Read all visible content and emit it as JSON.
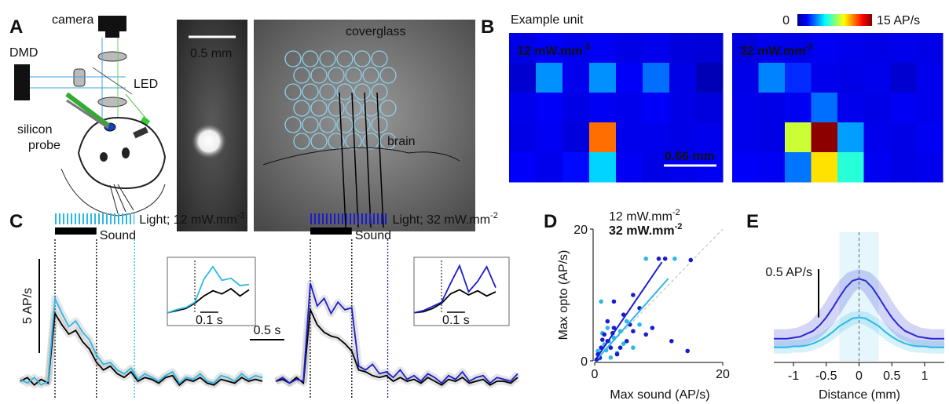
{
  "panel_a": {
    "label": "A",
    "camera": "camera",
    "dmd": "DMD",
    "led": "LED",
    "probe": [
      "silicon",
      "probe"
    ],
    "scale": "0.5 mm",
    "coverglass": "coverglass",
    "brain": "brain"
  },
  "panel_b": {
    "label": "B",
    "title": "Example unit",
    "clim": [
      0,
      15
    ],
    "cticks": [
      0,
      {
        "value": 15,
        "label": "15 AP/s"
      }
    ],
    "scale": "0.66 mm",
    "maps": [
      {
        "power": {
          "base": "12 mW.mm",
          "exp": "-2"
        },
        "values": [
          [
            1.5,
            1.8,
            1.6,
            1.7,
            1.5,
            1.6,
            1.4,
            1.3
          ],
          [
            1.2,
            4.0,
            1.6,
            4.0,
            1.8,
            3.5,
            1.5,
            0.8
          ],
          [
            1.6,
            1.8,
            1.5,
            1.7,
            1.6,
            1.8,
            1.5,
            1.4
          ],
          [
            1.5,
            1.7,
            1.4,
            11.5,
            1.6,
            1.6,
            1.5,
            1.6
          ],
          [
            1.8,
            1.6,
            2.0,
            5.0,
            1.7,
            1.5,
            1.6,
            1.7
          ]
        ]
      },
      {
        "power": {
          "base": "32 mW.mm",
          "exp": "-2"
        },
        "values": [
          [
            1.4,
            1.6,
            1.5,
            1.7,
            1.6,
            1.5,
            1.6,
            1.5
          ],
          [
            1.5,
            3.8,
            2.5,
            1.6,
            1.5,
            1.6,
            1.2,
            1.6
          ],
          [
            1.6,
            1.5,
            1.7,
            3.5,
            1.6,
            1.5,
            1.7,
            1.6
          ],
          [
            1.6,
            1.5,
            8.6,
            14.8,
            4.2,
            1.6,
            1.5,
            1.7
          ],
          [
            1.8,
            1.7,
            3.6,
            9.8,
            6.2,
            1.7,
            1.5,
            1.6
          ]
        ]
      }
    ]
  },
  "panel_c": {
    "label": "C",
    "sound": "Sound",
    "scale_y": "5 AP/s",
    "scale_x": "0.5 s",
    "inset_scale": "0.1 s",
    "ylim": [
      0,
      9
    ],
    "inset_ylim": [
      0,
      6
    ],
    "sound_period": [
      0,
      0.6
    ],
    "t": [
      -0.5,
      -0.4,
      -0.3,
      -0.2,
      -0.1,
      0,
      0.1,
      0.2,
      0.3,
      0.4,
      0.5,
      0.6,
      0.7,
      0.8,
      0.9,
      1.0,
      1.1,
      1.2,
      1.3,
      1.4,
      1.5,
      1.6,
      1.7,
      1.8,
      1.9,
      2.0,
      2.1,
      2.2,
      2.3,
      2.4,
      2.5,
      2.6,
      2.7,
      2.8,
      2.9,
      3.0
    ],
    "inset_t": [
      -0.15,
      -0.1,
      -0.05,
      0,
      0.05,
      0.1,
      0.15,
      0.2,
      0.25,
      0.3
    ],
    "conditions": [
      {
        "light": {
          "base": "Light; 12 mW.mm",
          "exp": "-2"
        },
        "color": "#2bb8e6",
        "light_period": [
          0,
          1.15
        ],
        "light_values": [
          1.1,
          0.9,
          1.2,
          0.8,
          1.0,
          5.4,
          4.6,
          3.9,
          4.2,
          3.6,
          3.2,
          2.4,
          1.9,
          2.0,
          1.6,
          1.4,
          1.7,
          1.1,
          1.4,
          1.2,
          1.0,
          1.3,
          1.5,
          0.9,
          1.2,
          1.1,
          1.4,
          1.0,
          0.9,
          1.3,
          1.2,
          1.0,
          1.4,
          1.1,
          1.3,
          1.2
        ],
        "sound_values": [
          1.0,
          1.2,
          0.8,
          1.1,
          0.9,
          4.6,
          4.0,
          3.5,
          3.7,
          3.1,
          2.7,
          2.0,
          1.6,
          1.8,
          1.4,
          1.2,
          1.5,
          1.0,
          1.2,
          1.1,
          0.9,
          1.2,
          1.3,
          0.8,
          1.1,
          1.0,
          1.2,
          0.9,
          0.8,
          1.1,
          1.0,
          0.9,
          1.2,
          1.0,
          1.1,
          1.0
        ],
        "inset_light": [
          1.0,
          1.3,
          1.5,
          2.0,
          4.2,
          5.4,
          4.1,
          4.3,
          3.6,
          3.7
        ],
        "inset_sound": [
          1.0,
          1.2,
          1.4,
          1.9,
          2.6,
          3.1,
          2.8,
          3.3,
          2.6,
          3.2
        ]
      },
      {
        "light": {
          "base": "Light; 32 mW.mm",
          "exp": "-2"
        },
        "color": "#1c1ccf",
        "light_period": [
          0,
          1.12
        ],
        "light_values": [
          1.0,
          1.2,
          0.9,
          1.1,
          1.0,
          6.2,
          5.0,
          5.4,
          4.6,
          5.2,
          4.8,
          4.9,
          1.8,
          1.6,
          1.9,
          1.4,
          1.5,
          1.2,
          1.6,
          1.1,
          1.3,
          1.0,
          1.4,
          1.2,
          0.9,
          1.3,
          1.1,
          1.5,
          1.0,
          1.2,
          1.3,
          0.9,
          1.2,
          1.1,
          1.0,
          1.4
        ],
        "sound_values": [
          1.0,
          1.1,
          0.9,
          1.2,
          0.9,
          4.8,
          4.0,
          3.6,
          3.4,
          3.3,
          3.0,
          2.6,
          1.6,
          1.5,
          1.3,
          1.2,
          1.3,
          1.0,
          1.2,
          1.0,
          1.1,
          0.9,
          1.2,
          1.0,
          0.8,
          1.1,
          1.0,
          1.2,
          0.9,
          1.0,
          1.1,
          0.8,
          1.0,
          1.0,
          0.9,
          1.2
        ],
        "inset_light": [
          1.0,
          1.2,
          1.6,
          2.0,
          3.8,
          5.5,
          3.0,
          4.0,
          5.4,
          3.4
        ],
        "inset_sound": [
          1.0,
          1.1,
          1.4,
          1.9,
          2.8,
          3.2,
          2.7,
          3.1,
          2.6,
          3.0
        ]
      }
    ]
  },
  "panel_d": {
    "label": "D",
    "xlabel": "Max sound (AP/s)",
    "ylabel": "Max opto (AP/s)",
    "xlim": [
      0,
      20
    ],
    "ylim": [
      0,
      20
    ],
    "xticks": [
      0,
      20
    ],
    "yticks": [
      0,
      20
    ],
    "series": [
      {
        "name": {
          "base": "12 mW.mm",
          "exp": "-2"
        },
        "color": "#2bb8e6",
        "x": [
          12.5,
          8,
          1,
          7,
          4,
          2,
          0.5,
          3,
          1.5,
          6,
          2.5,
          5,
          1.2,
          3.5,
          0.8,
          2.2,
          4.5,
          1.8
        ],
        "y": [
          15.5,
          15.5,
          9,
          5.5,
          4.5,
          5,
          1.5,
          3.5,
          2.5,
          2,
          0.5,
          6,
          4.2,
          1.2,
          0.4,
          3,
          2.6,
          1.6
        ],
        "fit_x": [
          0.5,
          11.5
        ],
        "fit_y": [
          0.4,
          12.5
        ]
      },
      {
        "name": {
          "base": "32 mW.mm",
          "exp": "-2"
        },
        "color": "#1c1ccf",
        "x": [
          10,
          11,
          15,
          6,
          7,
          4.5,
          9,
          14.5,
          3,
          2,
          1,
          0.5,
          5,
          6,
          3,
          2,
          1.5,
          4,
          8,
          3.5,
          0.8,
          2.5,
          12,
          5.5,
          1.2,
          0.3,
          2.8
        ],
        "y": [
          15.5,
          15.5,
          15.3,
          10,
          8,
          7,
          5,
          1.5,
          5,
          3,
          2,
          1,
          3,
          4.5,
          9,
          6,
          4,
          2,
          4,
          1,
          0.5,
          2,
          3,
          5.5,
          3.2,
          0.2,
          4.2
        ],
        "fit_x": [
          0,
          10.5
        ],
        "fit_y": [
          0,
          15
        ]
      }
    ]
  },
  "panel_e": {
    "label": "E",
    "xlabel": "Distance (mm)",
    "scale": "0.5 AP/s",
    "xlim": [
      -1.3,
      1.3
    ],
    "ylim": [
      0,
      1.3
    ],
    "xticks": [
      -1,
      -0.5,
      0,
      0.5,
      1
    ],
    "x": [
      -1.3,
      -1.2,
      -1.1,
      -1.0,
      -0.9,
      -0.8,
      -0.7,
      -0.6,
      -0.5,
      -0.4,
      -0.3,
      -0.2,
      -0.1,
      0,
      0.1,
      0.2,
      0.3,
      0.4,
      0.5,
      0.6,
      0.7,
      0.8,
      0.9,
      1.0,
      1.1,
      1.2,
      1.3
    ],
    "series": [
      {
        "color": "#2a2ad0",
        "values": [
          0.23,
          0.23,
          0.23,
          0.24,
          0.25,
          0.28,
          0.31,
          0.37,
          0.45,
          0.55,
          0.66,
          0.76,
          0.83,
          0.85,
          0.83,
          0.76,
          0.66,
          0.55,
          0.45,
          0.37,
          0.31,
          0.28,
          0.25,
          0.24,
          0.23,
          0.23,
          0.23
        ]
      },
      {
        "color": "#2bb8e6",
        "values": [
          0.14,
          0.14,
          0.14,
          0.15,
          0.15,
          0.16,
          0.18,
          0.21,
          0.25,
          0.3,
          0.36,
          0.4,
          0.44,
          0.45,
          0.44,
          0.4,
          0.36,
          0.3,
          0.25,
          0.21,
          0.18,
          0.16,
          0.15,
          0.15,
          0.14,
          0.14,
          0.14
        ]
      }
    ]
  }
}
